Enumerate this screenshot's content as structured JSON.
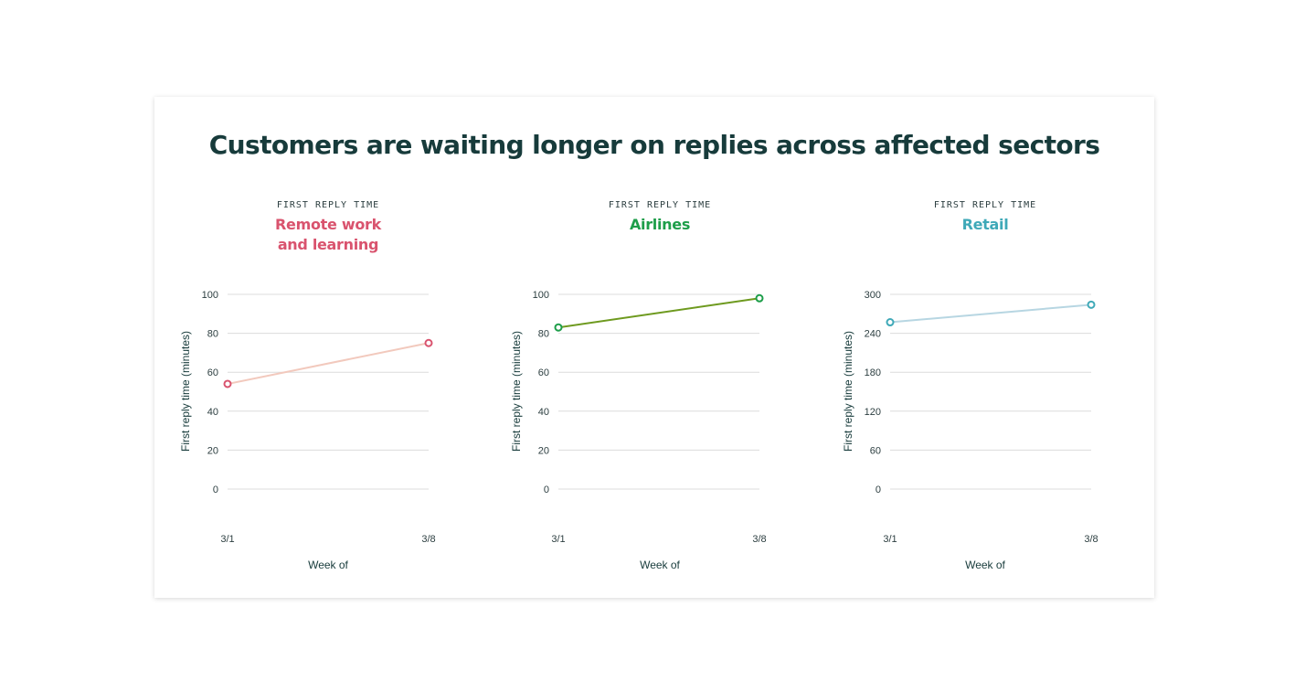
{
  "title": "Customers are waiting longer on replies across affected sectors",
  "chart_data": [
    {
      "type": "line",
      "kicker": "FIRST REPLY TIME",
      "subtitle": [
        "Remote work",
        "and learning"
      ],
      "title_color": "#d9536e",
      "line_color": "#f2c9bd",
      "marker_color": "#d9536e",
      "x": [
        "3/1",
        "3/8"
      ],
      "series": [
        {
          "values": [
            54,
            75
          ]
        }
      ],
      "ylim": [
        0,
        100
      ],
      "yticks": [
        0,
        20,
        40,
        60,
        80,
        100
      ],
      "xlabel": "Week of",
      "ylabel": "First reply time (minutes)",
      "grid": true
    },
    {
      "type": "line",
      "kicker": "FIRST REPLY TIME",
      "subtitle": [
        "Airlines"
      ],
      "title_color": "#1e9e4a",
      "line_color": "#6e9a1f",
      "marker_color": "#1e9e4a",
      "x": [
        "3/1",
        "3/8"
      ],
      "series": [
        {
          "values": [
            83,
            98
          ]
        }
      ],
      "ylim": [
        0,
        100
      ],
      "yticks": [
        0,
        20,
        40,
        60,
        80,
        100
      ],
      "xlabel": "Week of",
      "ylabel": "First reply time (minutes)",
      "grid": true
    },
    {
      "type": "line",
      "kicker": "FIRST REPLY TIME",
      "subtitle": [
        "Retail"
      ],
      "title_color": "#3fa9b8",
      "line_color": "#b7d6e2",
      "marker_color": "#3fa9b8",
      "x": [
        "3/1",
        "3/8"
      ],
      "series": [
        {
          "values": [
            257,
            284
          ]
        }
      ],
      "ylim": [
        0,
        300
      ],
      "yticks": [
        0,
        60,
        120,
        180,
        240,
        300
      ],
      "xlabel": "Week of",
      "ylabel": "First reply time (minutes)",
      "grid": true
    }
  ]
}
